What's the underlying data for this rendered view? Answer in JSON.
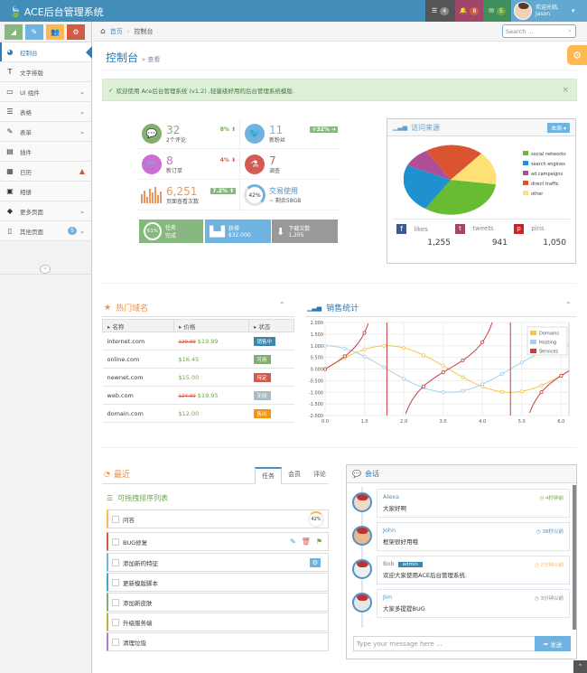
{
  "navbar": {
    "brand": "ACE后台管理系统",
    "tasks_count": "4",
    "notif_count": "8",
    "mail_count": "5",
    "user_greeting": "欢迎光临,",
    "user_name": "Jason"
  },
  "sidebar": {
    "items": [
      {
        "label": "控制台",
        "icon": "dashboard-icon",
        "arrow": ""
      },
      {
        "label": "文字排版",
        "icon": "text-icon",
        "arrow": ""
      },
      {
        "label": "UI 组件",
        "icon": "desktop-icon",
        "arrow": "⌄"
      },
      {
        "label": "表格",
        "icon": "list-icon",
        "arrow": "⌄"
      },
      {
        "label": "表单",
        "icon": "edit-icon",
        "arrow": "⌄"
      },
      {
        "label": "插件",
        "icon": "widget-icon",
        "arrow": ""
      },
      {
        "label": "日历",
        "icon": "calendar-icon",
        "arrow": ""
      },
      {
        "label": "相册",
        "icon": "picture-icon",
        "arrow": ""
      },
      {
        "label": "更多页面",
        "icon": "tag-icon",
        "arrow": "⌄"
      },
      {
        "label": "其他页面",
        "icon": "file-icon",
        "arrow": "⌄"
      }
    ],
    "other_badge": "5"
  },
  "breadcrumb": {
    "home": "首页",
    "current": "控制台"
  },
  "search": {
    "placeholder": "Search ..."
  },
  "page": {
    "title": "控制台",
    "subtitle": "» 查看"
  },
  "alert": {
    "text": "欢迎使用 Ace后台管理系统 (v1.2) ,轻量级好用的后台管理系统模版."
  },
  "infoboxes": [
    {
      "num": "32",
      "label": "2个评论",
      "stat": "8%",
      "dir": "up"
    },
    {
      "num": "11",
      "label": "新粉丝",
      "stat": "+32%",
      "dir": "box"
    },
    {
      "num": "8",
      "label": "新订单",
      "stat": "4%",
      "dir": "down"
    },
    {
      "num": "7",
      "label": "调查",
      "stat": "",
      "dir": ""
    },
    {
      "num": "6,251",
      "label": "页面查看次数",
      "stat": "7.2%",
      "dir": "box"
    },
    {
      "num": "交易使用",
      "label": "~ 剩余58GB",
      "stat": "",
      "dir": ""
    }
  ],
  "pie_percent": "42%",
  "smallboxes": [
    {
      "title": "任务",
      "sub": "完成",
      "pct": "61%"
    },
    {
      "title": "获得",
      "sub": "$32,000"
    },
    {
      "title": "下载次数",
      "sub": "1,205"
    }
  ],
  "traffic": {
    "title": "访问来源",
    "period": "本周",
    "legend": [
      "social networks",
      "search engines",
      "ad campaigns",
      "direct traffic",
      "other"
    ],
    "social": [
      {
        "name": "likes",
        "value": "1,255"
      },
      {
        "name": "tweets",
        "value": "941"
      },
      {
        "name": "pins",
        "value": "1,050"
      }
    ]
  },
  "domains": {
    "title": "热门域名",
    "headers": [
      "名称",
      "价格",
      "状态"
    ],
    "rows": [
      {
        "name": "internet.com",
        "old": "$29.99",
        "price": "$19.99",
        "status": "销售中",
        "color": "#3a87ad"
      },
      {
        "name": "online.com",
        "old": "",
        "price": "$16.45",
        "status": "可用",
        "color": "#82af6f"
      },
      {
        "name": "newnet.com",
        "old": "",
        "price": "$15.00",
        "status": "待定",
        "color": "#d15b47"
      },
      {
        "name": "web.com",
        "old": "$24.99",
        "price": "$19.95",
        "status": "无效",
        "color": "#abbac3"
      },
      {
        "name": "domain.com",
        "old": "",
        "price": "$12.00",
        "status": "售出",
        "color": "#f89406"
      }
    ]
  },
  "sales": {
    "title": "销售统计"
  },
  "chart_data": {
    "type": "line",
    "title": "销售统计",
    "xlim": [
      0,
      6.2
    ],
    "ylim": [
      -2,
      2
    ],
    "xticks": [
      "0.0",
      "1.0",
      "2.0",
      "3.0",
      "4.0",
      "5.0",
      "6.0"
    ],
    "yticks": [
      "2.000",
      "1.500",
      "1.000",
      "0.500",
      "0.000",
      "-0.500",
      "-1.000",
      "-1.500",
      "-2.000"
    ],
    "legend_position": "top-right",
    "series": [
      {
        "name": "Domains",
        "color": "#f5c64f"
      },
      {
        "name": "Hosting",
        "color": "#a8d0ed"
      },
      {
        "name": "Services",
        "color": "#cb3e3e"
      }
    ]
  },
  "recent": {
    "title": "最近",
    "tabs": [
      "任务",
      "会员",
      "评论"
    ],
    "tasks_title": "可拖拽排序列表",
    "tasks": [
      "问答",
      "BUG修复",
      "添加新的特征",
      "更新模版脚本",
      "添加新皮肤",
      "升级服务端",
      "清理垃圾"
    ],
    "progress": "42%"
  },
  "chat": {
    "title": "会话",
    "messages": [
      {
        "name": "Alexa",
        "time": "4秒钟前",
        "text": "大家好啊"
      },
      {
        "name": "John",
        "time": "38秒以前",
        "text": "框架很好用哦"
      },
      {
        "name": "Bob",
        "time": "2分钟以前",
        "text": "欢迎大家使用ACE后台管理系统.",
        "badge": "admin"
      },
      {
        "name": "Jim",
        "time": "3分钟以前",
        "text": "大家多提提BUG"
      }
    ],
    "placeholder": "Type your message here ...",
    "send": "发送"
  }
}
